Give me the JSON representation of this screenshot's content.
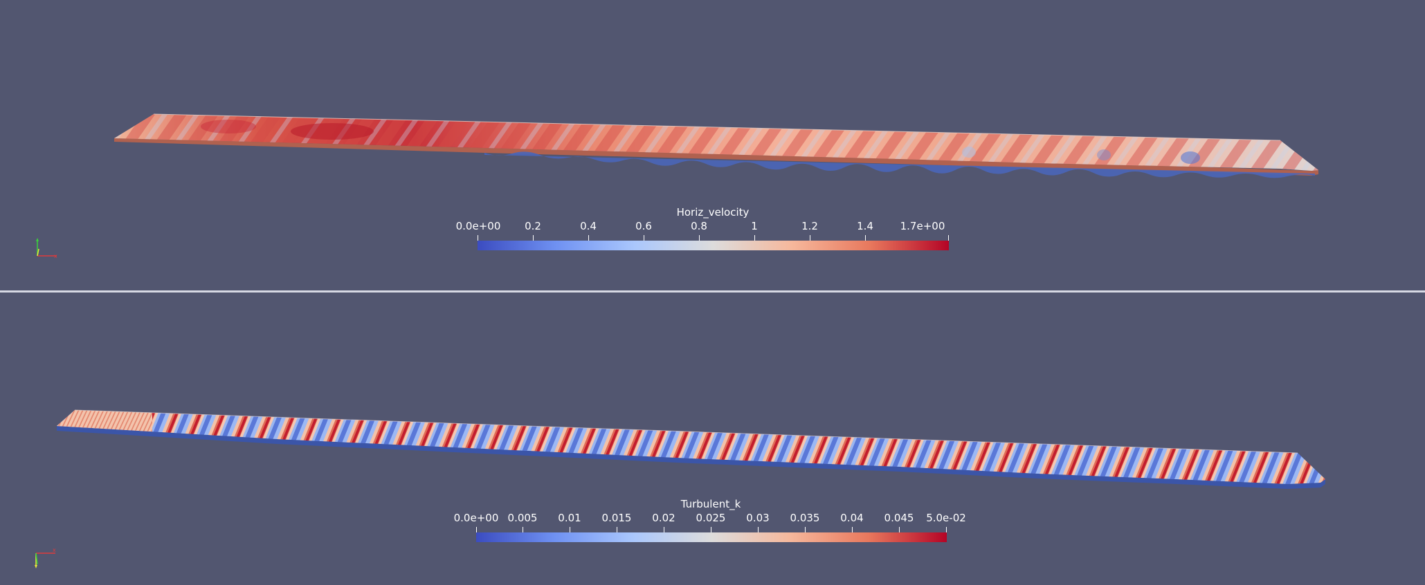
{
  "views": [
    {
      "id": "top",
      "scalar_bar": {
        "title": "Horiz_velocity",
        "ticks": [
          "0.0e+00",
          "0.2",
          "0.4",
          "0.6",
          "0.8",
          "1",
          "1.2",
          "1.4",
          "1.7e+00"
        ],
        "colors": [
          "#3b4cc0",
          "#6f91f2",
          "#aac7fd",
          "#dddcdc",
          "#f6b89c",
          "#e8785d",
          "#b40426"
        ]
      },
      "surface": {
        "colormap": "Cool to Warm",
        "dominant": "warm-red"
      }
    },
    {
      "id": "bottom",
      "scalar_bar": {
        "title": "Turbulent_k",
        "ticks": [
          "0.0e+00",
          "0.005",
          "0.01",
          "0.015",
          "0.02",
          "0.025",
          "0.03",
          "0.035",
          "0.04",
          "0.045",
          "5.0e-02"
        ],
        "colors": [
          "#3b4cc0",
          "#6f91f2",
          "#aac7fd",
          "#dddcdc",
          "#f6b89c",
          "#e8785d",
          "#b40426"
        ]
      },
      "surface": {
        "colormap": "Cool to Warm",
        "dominant": "blue-red stripes"
      }
    }
  ],
  "axes": {
    "x_label": "x",
    "x_color": "#e03a3a",
    "y_color": "#e8e83a",
    "z_color": "#3ad43a"
  },
  "background": "#525670"
}
